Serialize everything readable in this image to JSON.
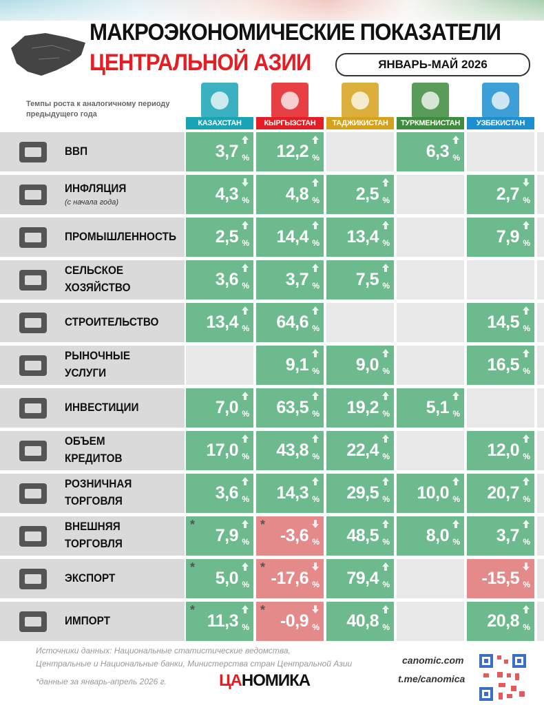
{
  "header": {
    "title_line1": "МАКРОЭКОНОМИЧЕСКИЕ ПОКАЗАТЕЛИ",
    "title_line2": "ЦЕНТРАЛЬНОЙ АЗИИ",
    "period": "ЯНВАРЬ-МАЙ 2026",
    "note": "Темпы роста к аналогичному периоду предыдущего года"
  },
  "table": {
    "unit": "%",
    "star_mark": "*",
    "countries": [
      {
        "name": "КАЗАХСТАН",
        "color": "#19a3b6"
      },
      {
        "name": "КЫРГЫЗСТАН",
        "color": "#e31e24"
      },
      {
        "name": "ТАДЖИКИСТАН",
        "color": "#d6a21b"
      },
      {
        "name": "ТУРКМЕНИСТАН",
        "color": "#3d8b3d"
      },
      {
        "name": "УЗБЕКИСТАН",
        "color": "#1d8fd1"
      }
    ],
    "rows": [
      {
        "label": [
          "ВВП"
        ],
        "cells": [
          {
            "value": "3,7",
            "trend": "up",
            "tone": "pos"
          },
          {
            "value": "12,2",
            "trend": "up",
            "tone": "pos"
          },
          null,
          {
            "value": "6,3",
            "trend": "up",
            "tone": "pos"
          },
          null
        ]
      },
      {
        "label": [
          "ИНФЛЯЦИЯ"
        ],
        "sublabel": "(с начала года)",
        "cells": [
          {
            "value": "4,3",
            "trend": "down",
            "tone": "pos"
          },
          {
            "value": "4,8",
            "trend": "up",
            "tone": "pos"
          },
          {
            "value": "2,5",
            "trend": "up",
            "tone": "pos"
          },
          null,
          {
            "value": "2,7",
            "trend": "down",
            "tone": "pos"
          }
        ]
      },
      {
        "label": [
          "ПРОМЫШЛЕННОСТЬ"
        ],
        "cells": [
          {
            "value": "2,5",
            "trend": "up",
            "tone": "pos"
          },
          {
            "value": "14,4",
            "trend": "up",
            "tone": "pos"
          },
          {
            "value": "13,4",
            "trend": "up",
            "tone": "pos"
          },
          null,
          {
            "value": "7,9",
            "trend": "up",
            "tone": "pos"
          }
        ]
      },
      {
        "label": [
          "СЕЛЬСКОЕ",
          "ХОЗЯЙСТВО"
        ],
        "cells": [
          {
            "value": "3,6",
            "trend": "up",
            "tone": "pos"
          },
          {
            "value": "3,7",
            "trend": "up",
            "tone": "pos"
          },
          {
            "value": "7,5",
            "trend": "up",
            "tone": "pos"
          },
          null,
          null
        ]
      },
      {
        "label": [
          "СТРОИТЕЛЬСТВО"
        ],
        "cells": [
          {
            "value": "13,4",
            "trend": "up",
            "tone": "pos"
          },
          {
            "value": "64,6",
            "trend": "up",
            "tone": "pos"
          },
          null,
          null,
          {
            "value": "14,5",
            "trend": "up",
            "tone": "pos"
          }
        ]
      },
      {
        "label": [
          "РЫНОЧНЫЕ",
          "УСЛУГИ"
        ],
        "cells": [
          null,
          {
            "value": "9,1",
            "trend": "up",
            "tone": "pos"
          },
          {
            "value": "9,0",
            "trend": "up",
            "tone": "pos"
          },
          null,
          {
            "value": "16,5",
            "trend": "up",
            "tone": "pos"
          }
        ]
      },
      {
        "label": [
          "ИНВЕСТИЦИИ"
        ],
        "cells": [
          {
            "value": "7,0",
            "trend": "up",
            "tone": "pos"
          },
          {
            "value": "63,5",
            "trend": "up",
            "tone": "pos"
          },
          {
            "value": "19,2",
            "trend": "up",
            "tone": "pos"
          },
          {
            "value": "5,1",
            "trend": "up",
            "tone": "pos"
          },
          null
        ]
      },
      {
        "label": [
          "ОБЪЕМ",
          "КРЕДИТОВ"
        ],
        "cells": [
          {
            "value": "17,0",
            "trend": "up",
            "tone": "pos"
          },
          {
            "value": "43,8",
            "trend": "up",
            "tone": "pos"
          },
          {
            "value": "22,4",
            "trend": "up",
            "tone": "pos"
          },
          null,
          {
            "value": "12,0",
            "trend": "up",
            "tone": "pos"
          }
        ]
      },
      {
        "label": [
          "РОЗНИЧНАЯ",
          "ТОРГОВЛЯ"
        ],
        "cells": [
          {
            "value": "3,6",
            "trend": "up",
            "tone": "pos"
          },
          {
            "value": "14,3",
            "trend": "up",
            "tone": "pos"
          },
          {
            "value": "29,5",
            "trend": "up",
            "tone": "pos"
          },
          {
            "value": "10,0",
            "trend": "up",
            "tone": "pos"
          },
          {
            "value": "20,7",
            "trend": "up",
            "tone": "pos"
          }
        ]
      },
      {
        "label": [
          "ВНЕШНЯЯ",
          "ТОРГОВЛЯ"
        ],
        "cells": [
          {
            "value": "7,9",
            "trend": "up",
            "tone": "pos",
            "star": true
          },
          {
            "value": "-3,6",
            "trend": "down",
            "tone": "neg",
            "star": true
          },
          {
            "value": "48,5",
            "trend": "up",
            "tone": "pos"
          },
          {
            "value": "8,0",
            "trend": "up",
            "tone": "pos"
          },
          {
            "value": "3,7",
            "trend": "up",
            "tone": "pos"
          }
        ]
      },
      {
        "label": [
          "ЭКСПОРТ"
        ],
        "cells": [
          {
            "value": "5,0",
            "trend": "up",
            "tone": "pos",
            "star": true
          },
          {
            "value": "-17,6",
            "trend": "down",
            "tone": "neg",
            "star": true
          },
          {
            "value": "79,4",
            "trend": "up",
            "tone": "pos"
          },
          null,
          {
            "value": "-15,5",
            "trend": "down",
            "tone": "neg"
          }
        ]
      },
      {
        "label": [
          "ИМПОРТ"
        ],
        "cells": [
          {
            "value": "11,3",
            "trend": "up",
            "tone": "pos",
            "star": true
          },
          {
            "value": "-0,9",
            "trend": "down",
            "tone": "neg",
            "star": true
          },
          {
            "value": "40,8",
            "trend": "up",
            "tone": "pos"
          },
          null,
          {
            "value": "20,8",
            "trend": "up",
            "tone": "pos"
          }
        ]
      }
    ]
  },
  "footer": {
    "sources": [
      "Источники данных: Национальные статистические ведомства,",
      "Центральные и Национальные банки, Министерства стран Центральной Азии"
    ],
    "footnote": "*данные за январь-апрель 2026 г.",
    "logo_part1": "ЦА",
    "logo_part2": "НОМИКА",
    "site": "canomic.com",
    "telegram": "t.me/canomica"
  }
}
